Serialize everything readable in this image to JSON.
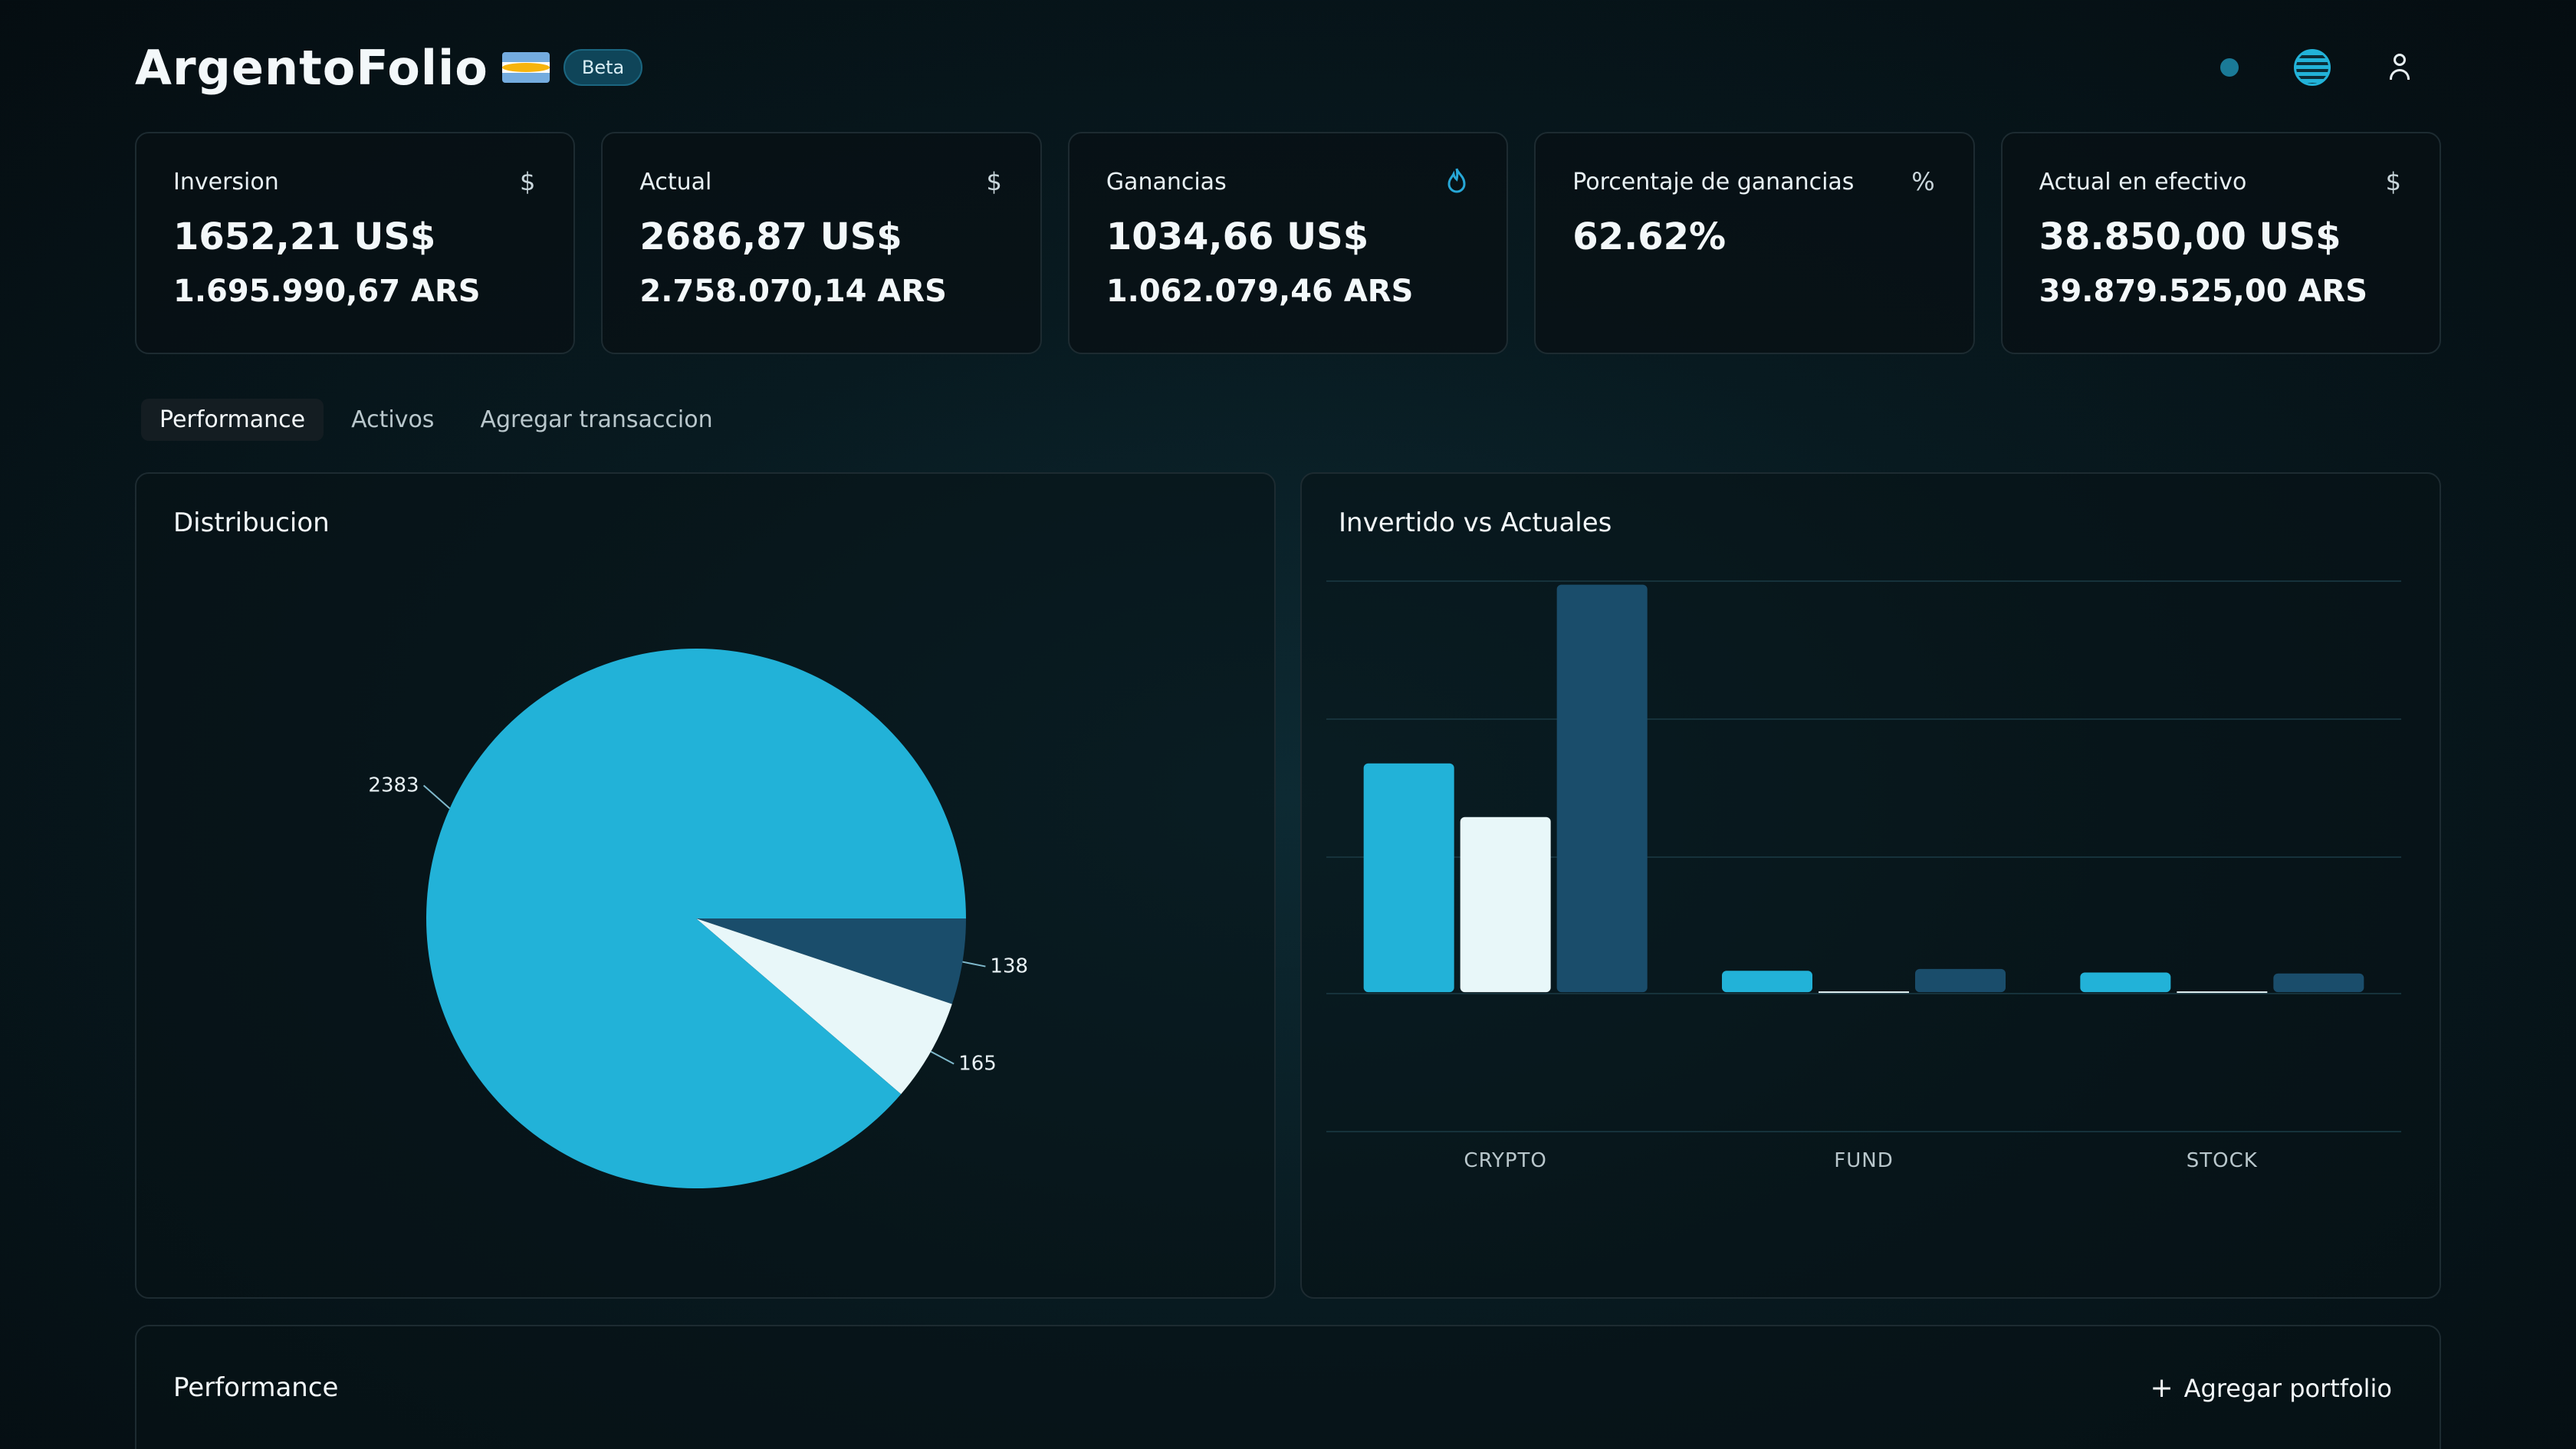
{
  "app": {
    "name": "ArgentoFolio",
    "badge": "Beta"
  },
  "colors": {
    "accent": "#22b2d8",
    "dark_series": "#1a4d6b",
    "light_series": "#e8f7f9"
  },
  "summary_cards": [
    {
      "title": "Inversion",
      "icon": "dollar-icon",
      "icon_glyph": "$",
      "usd": "1652,21 US$",
      "ars": "1.695.990,67 ARS"
    },
    {
      "title": "Actual",
      "icon": "dollar-icon",
      "icon_glyph": "$",
      "usd": "2686,87 US$",
      "ars": "2.758.070,14 ARS"
    },
    {
      "title": "Ganancias",
      "icon": "flame-icon",
      "icon_glyph": "🔥",
      "usd": "1034,66 US$",
      "ars": "1.062.079,46 ARS"
    },
    {
      "title": "Porcentaje de ganancias",
      "icon": "percent-icon",
      "icon_glyph": "%",
      "usd": "62.62%",
      "ars": ""
    },
    {
      "title": "Actual en efectivo",
      "icon": "dollar-icon",
      "icon_glyph": "$",
      "usd": "38.850,00 US$",
      "ars": "39.879.525,00 ARS"
    }
  ],
  "tabs": [
    "Performance",
    "Activos",
    "Agregar transaccion"
  ],
  "panels": {
    "distribution_title": "Distribucion",
    "comparison_title": "Invertido vs Actuales",
    "performance_title": "Performance",
    "add_portfolio_label": "Agregar portfolio"
  },
  "chart_data": [
    {
      "type": "pie",
      "title": "Distribucion",
      "slices": [
        {
          "label": "2383",
          "value": 2383,
          "color": "#22b2d8"
        },
        {
          "label": "138",
          "value": 138,
          "color": "#1a4d6b"
        },
        {
          "label": "165",
          "value": 165,
          "color": "#e8f7f9"
        }
      ]
    },
    {
      "type": "bar",
      "title": "Invertido vs Actuales",
      "categories": [
        "CRYPTO",
        "FUND",
        "STOCK"
      ],
      "series": [
        {
          "values": [
            1280,
            120,
            110
          ],
          "color": "#22b2d8"
        },
        {
          "values": [
            980,
            0,
            0
          ],
          "color": "#e8f7f9"
        },
        {
          "values": [
            2280,
            130,
            105
          ],
          "color": "#1a4d6b"
        }
      ],
      "ylim": [
        -780,
        2300
      ],
      "grid": true
    }
  ]
}
